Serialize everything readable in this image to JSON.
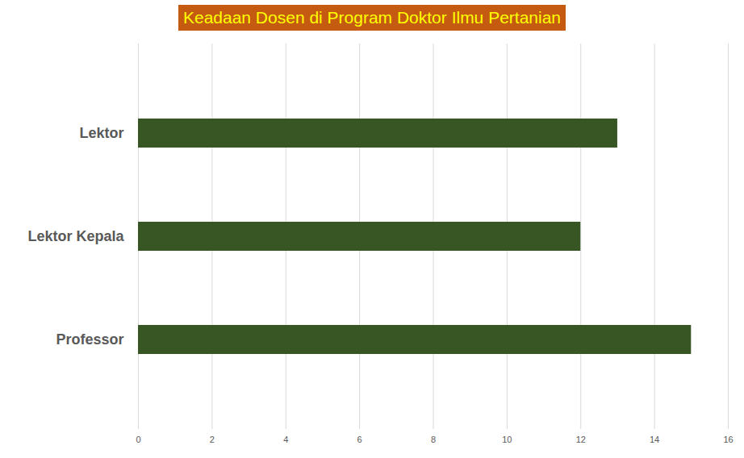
{
  "chart_data": {
    "type": "bar",
    "title": "Keadaan Dosen di Program Doktor Ilmu Pertanian",
    "orientation": "horizontal",
    "categories": [
      "Lektor",
      "Lektor Kepala",
      "Professor"
    ],
    "values": [
      13,
      12,
      15
    ],
    "color": "#375623",
    "xlim": [
      0,
      16
    ],
    "xticks": [
      0,
      2,
      4,
      6,
      8,
      10,
      12,
      14,
      16
    ],
    "grid": true
  }
}
